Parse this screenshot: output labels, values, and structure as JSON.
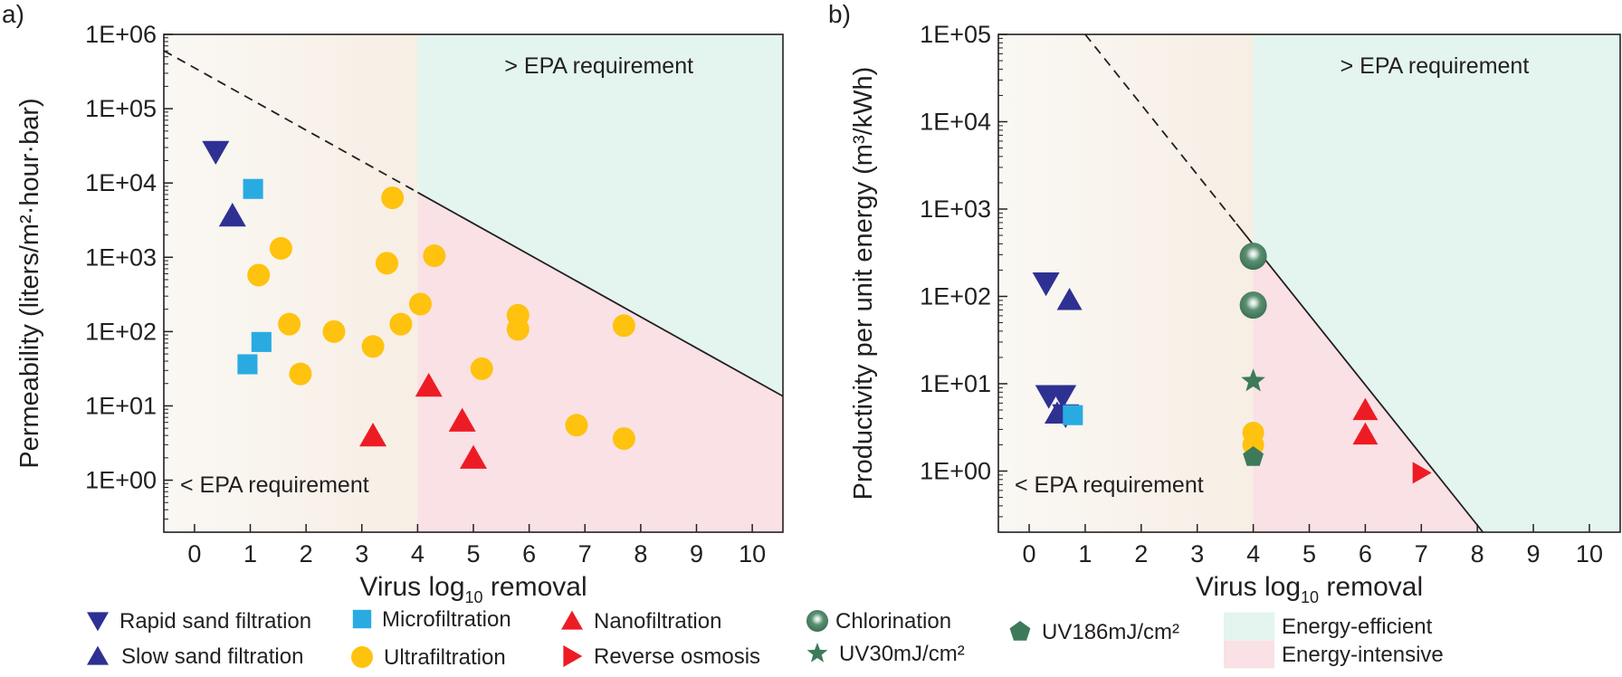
{
  "figure": {
    "panel_labels": [
      "a)",
      "b)"
    ],
    "legend": [
      {
        "key": "rapid_sand",
        "label": "Rapid sand filtration",
        "marker": "triangle-down",
        "color": "#2e3192"
      },
      {
        "key": "slow_sand",
        "label": "Slow sand filtration",
        "marker": "triangle-up",
        "color": "#2e3192"
      },
      {
        "key": "micro",
        "label": "Microfiltration",
        "marker": "square",
        "color": "#29abe2"
      },
      {
        "key": "ultra",
        "label": "Ultrafiltration",
        "marker": "circle",
        "color": "#ffc20e"
      },
      {
        "key": "nano",
        "label": "Nanofiltration",
        "marker": "triangle-up",
        "color": "#ed1c24"
      },
      {
        "key": "ro",
        "label": "Reverse osmosis",
        "marker": "triangle-right",
        "color": "#ed1c24"
      },
      {
        "key": "chlor",
        "label": "Chlorination",
        "marker": "sphere",
        "color": "#3d7a5a"
      },
      {
        "key": "uv30",
        "label": "UV30mJ/cm²",
        "marker": "star",
        "color": "#3d7a5a"
      },
      {
        "key": "uv186",
        "label": "UV186mJ/cm²",
        "marker": "pentagon",
        "color": "#3d7a5a"
      },
      {
        "key": "eff",
        "label": "Energy-efficient",
        "marker": "box",
        "color": "#e3f5ee"
      },
      {
        "key": "int",
        "label": "Energy-intensive",
        "marker": "box",
        "color": "#f9e1e5"
      }
    ],
    "colors": {
      "efficient": "#e3f5ee",
      "intensive": "#f9e1e5",
      "below_start": "#f9f7f2",
      "below_end": "#f7efe5"
    }
  },
  "chart_data": [
    {
      "type": "scatter",
      "panel": "a)",
      "title": "",
      "xlabel": "Virus log",
      "xlabel_sub": "10",
      "xlabel_suffix": " removal",
      "ylabel": "Permeability (liters/m²·hour·bar)",
      "xlim": [
        -0.55,
        10.55
      ],
      "ylim": [
        -0.7,
        6
      ],
      "yscale": "log",
      "xticks": [
        "0",
        "1",
        "2",
        "3",
        "4",
        "5",
        "6",
        "7",
        "8",
        "9",
        "10"
      ],
      "yticks": [
        "1E+00",
        "1E+01",
        "1E+02",
        "1E+03",
        "1E+04",
        "1E+05",
        "1E+06"
      ],
      "annotations": {
        "above": "> EPA requirement",
        "below": "< EPA requirement"
      },
      "epa_x": 4,
      "boundary": {
        "x1": -0.55,
        "y1": 5.78,
        "x2": 10.55,
        "y2": 1.13,
        "dashed_until_x": 4
      },
      "series": [
        {
          "name": "Rapid sand filtration",
          "points": [
            [
              0.38,
              4.42
            ]
          ]
        },
        {
          "name": "Slow sand filtration",
          "points": [
            [
              0.68,
              3.56
            ]
          ]
        },
        {
          "name": "Microfiltration",
          "points": [
            [
              1.05,
              3.92
            ],
            [
              1.2,
              1.86
            ],
            [
              0.95,
              1.56
            ]
          ]
        },
        {
          "name": "Ultrafiltration",
          "points": [
            [
              3.55,
              3.8
            ],
            [
              1.55,
              3.12
            ],
            [
              3.45,
              2.92
            ],
            [
              4.3,
              3.02
            ],
            [
              1.15,
              2.76
            ],
            [
              4.05,
              2.37
            ],
            [
              5.8,
              2.22
            ],
            [
              1.7,
              2.1
            ],
            [
              2.5,
              2.0
            ],
            [
              3.7,
              2.1
            ],
            [
              5.8,
              2.03
            ],
            [
              7.7,
              2.08
            ],
            [
              3.2,
              1.8
            ],
            [
              1.9,
              1.43
            ],
            [
              5.15,
              1.5
            ],
            [
              6.85,
              0.74
            ],
            [
              7.7,
              0.56
            ]
          ]
        },
        {
          "name": "Nanofiltration",
          "points": [
            [
              4.2,
              1.27
            ],
            [
              3.2,
              0.6
            ],
            [
              4.8,
              0.8
            ],
            [
              5.0,
              0.3
            ]
          ]
        }
      ]
    },
    {
      "type": "scatter",
      "panel": "b)",
      "title": "",
      "xlabel": "Virus log",
      "xlabel_sub": "10",
      "xlabel_suffix": " removal",
      "ylabel": "Productivity per unit energy (m³/kWh)",
      "xlim": [
        -0.55,
        10.55
      ],
      "ylim": [
        -0.7,
        5
      ],
      "yscale": "log",
      "xticks": [
        "0",
        "1",
        "2",
        "3",
        "4",
        "5",
        "6",
        "7",
        "8",
        "9",
        "10"
      ],
      "yticks": [
        "1E+00",
        "1E+01",
        "1E+02",
        "1E+03",
        "1E+04",
        "1E+05"
      ],
      "annotations": {
        "above": "> EPA requirement",
        "below": "< EPA requirement"
      },
      "epa_x": 4,
      "boundary": {
        "x1": 1.0,
        "y1": 5.0,
        "x2": 8.1,
        "y2": -0.7,
        "dashed_until_x": 3.7
      },
      "series": [
        {
          "name": "Rapid sand filtration",
          "points": [
            [
              0.3,
              2.15
            ],
            [
              0.35,
              0.86
            ],
            [
              0.6,
              0.86
            ],
            [
              0.65,
              0.64
            ]
          ]
        },
        {
          "name": "Slow sand filtration",
          "points": [
            [
              0.72,
              1.96
            ],
            [
              0.5,
              0.66
            ]
          ]
        },
        {
          "name": "Microfiltration",
          "points": [
            [
              0.78,
              0.64
            ]
          ]
        },
        {
          "name": "Ultrafiltration",
          "points": [
            [
              4.0,
              0.44
            ],
            [
              4.0,
              0.3
            ]
          ]
        },
        {
          "name": "Nanofiltration",
          "points": [
            [
              6.0,
              0.7
            ],
            [
              6.0,
              0.42
            ]
          ]
        },
        {
          "name": "Reverse osmosis",
          "points": [
            [
              7.0,
              -0.02
            ]
          ]
        },
        {
          "name": "Chlorination",
          "points": [
            [
              4.0,
              2.46
            ],
            [
              4.0,
              1.9
            ]
          ]
        },
        {
          "name": "UV30mJ/cm²",
          "points": [
            [
              4.0,
              1.03
            ]
          ]
        },
        {
          "name": "UV186mJ/cm²",
          "points": [
            [
              4.0,
              0.16
            ]
          ]
        }
      ]
    }
  ]
}
